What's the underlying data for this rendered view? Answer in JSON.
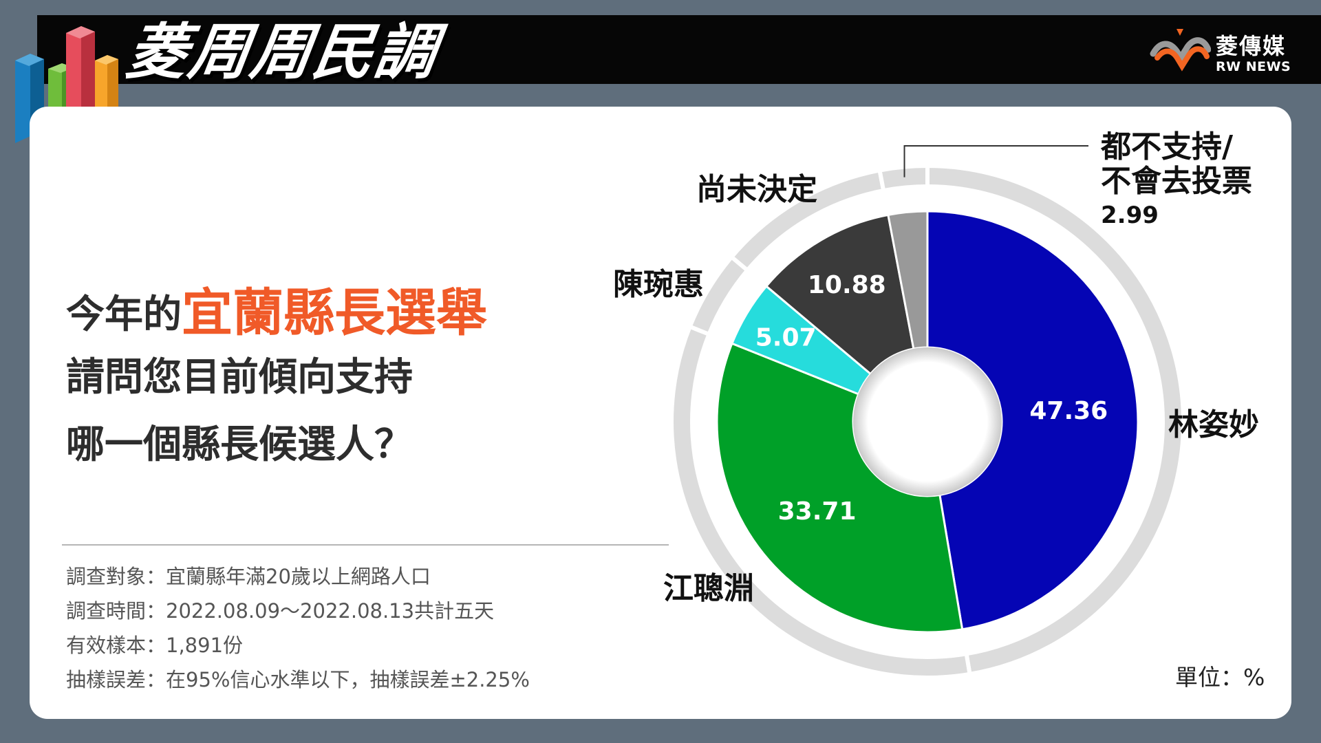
{
  "header": {
    "title": "菱周周民調",
    "brand_zh": "菱傳媒",
    "brand_en": "RW NEWS"
  },
  "question": {
    "line1_prefix": "今年的",
    "line1_highlight": "宜蘭縣長選舉",
    "line2": "請問您目前傾向支持",
    "line3": "哪一個縣長候選人？"
  },
  "meta": {
    "target": "調查對象：宜蘭縣年滿20歲以上網路人口",
    "period": "調查時間：2022.08.09～2022.08.13共計五天",
    "sample": "有效樣本：1,891份",
    "error": "抽樣誤差：在95%信心水準以下，抽樣誤差±2.25%"
  },
  "unit_label": "單位：%",
  "colors": {
    "accent": "#f05a28",
    "lin": "#0505b4",
    "jiang": "#00a028",
    "chen": "#26dcdc",
    "undecided": "#3a3a3a",
    "none": "#999999",
    "ring": "#dcdcdc"
  },
  "chart_data": {
    "type": "pie",
    "title": "",
    "unit": "%",
    "slices": [
      {
        "label": "林姿妙",
        "value": 47.36,
        "color": "#0505b4"
      },
      {
        "label": "江聰淵",
        "value": 33.71,
        "color": "#00a028"
      },
      {
        "label": "陳琬惠",
        "value": 5.07,
        "color": "#26dcdc"
      },
      {
        "label": "尚未決定",
        "value": 10.88,
        "color": "#3a3a3a"
      },
      {
        "label": "都不支持/不會去投票",
        "label_lines": [
          "都不支持/",
          "不會去投票"
        ],
        "value": 2.99,
        "color": "#999999"
      }
    ]
  }
}
